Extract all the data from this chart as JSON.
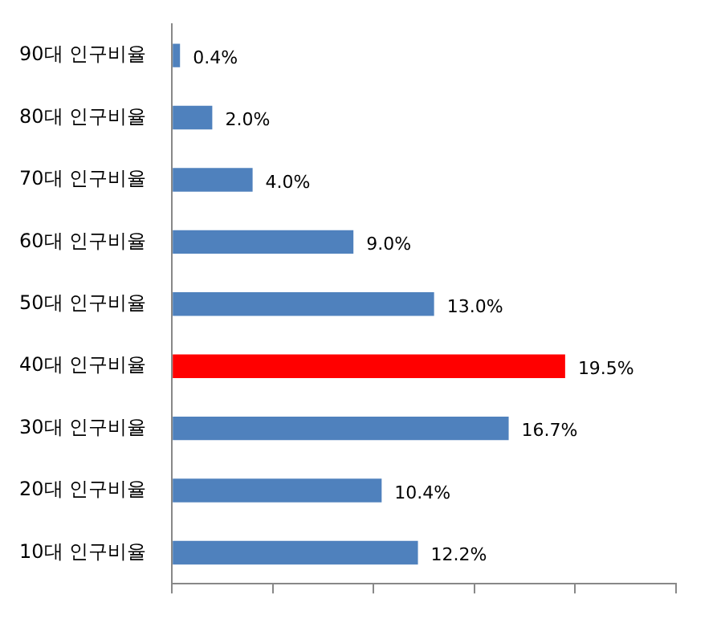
{
  "chart_data": {
    "type": "bar",
    "orientation": "horizontal",
    "categories": [
      "90대 인구비율",
      "80대 인구비율",
      "70대 인구비율",
      "60대 인구비율",
      "50대 인구비율",
      "40대 인구비율",
      "30대 인구비율",
      "20대 인구비율",
      "10대 인구비율"
    ],
    "values": [
      0.4,
      2.0,
      4.0,
      9.0,
      13.0,
      19.5,
      16.7,
      10.4,
      12.2
    ],
    "colors": [
      "#4f81bd",
      "#4f81bd",
      "#4f81bd",
      "#4f81bd",
      "#4f81bd",
      "#ff0000",
      "#4f81bd",
      "#4f81bd",
      "#4f81bd"
    ],
    "value_labels": [
      "0.4%",
      "2.0%",
      "4.0%",
      "9.0%",
      "13.0%",
      "19.5%",
      "16.7%",
      "10.4%",
      "12.2%"
    ],
    "xlim": [
      0,
      25
    ],
    "xticks": [
      {
        "value": 0,
        "label": null
      },
      {
        "value": 5,
        "label": null
      },
      {
        "value": 10,
        "label": null
      },
      {
        "value": 15,
        "label": null
      },
      {
        "value": 20,
        "label": null
      },
      {
        "value": 25,
        "label": null
      }
    ],
    "tick_labels": "y",
    "grid": false,
    "legend": false
  }
}
